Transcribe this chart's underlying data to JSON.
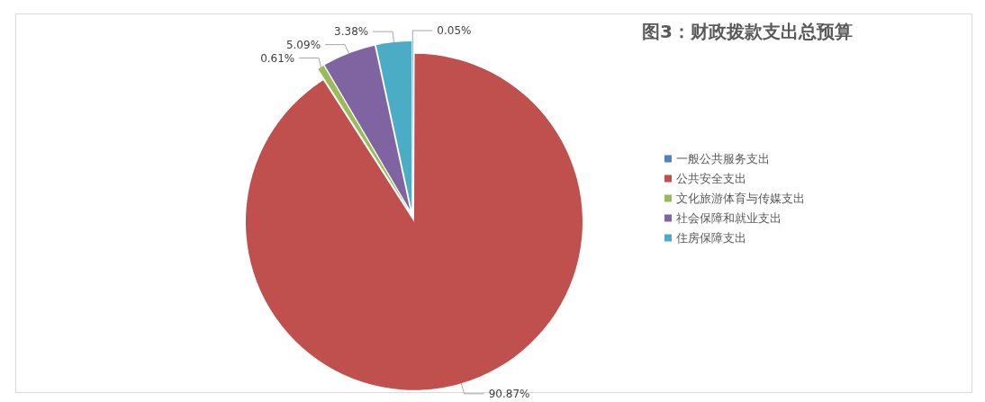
{
  "chart_data": {
    "type": "pie",
    "title": "图3：财政拨款支出总预算",
    "categories": [
      "一般公共服务支出",
      "公共安全支出",
      "文化旅游体育与传媒支出",
      "社会保障和就业支出",
      "住房保障支出"
    ],
    "values": [
      0.05,
      90.87,
      0.61,
      5.09,
      3.38
    ],
    "colors": [
      "#4f81bd",
      "#c0504d",
      "#9bbb59",
      "#8064a2",
      "#4bacc6"
    ],
    "value_labels": [
      "0.05%",
      "90.87%",
      "0.61%",
      "5.09%",
      "3.38%"
    ],
    "legend": "right"
  }
}
